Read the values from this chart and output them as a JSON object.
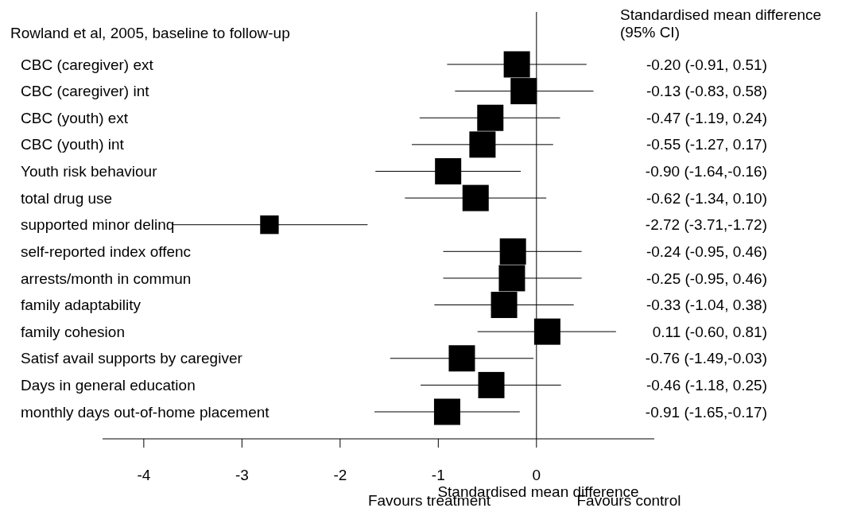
{
  "chart_data": {
    "type": "scatter",
    "orientation": "horizontal",
    "title": "Rowland et al, 2005, baseline to follow-up",
    "xlabel": "Standardised mean difference",
    "categories": [
      "CBC (caregiver) ext",
      "CBC (caregiver) int",
      "CBC (youth) ext",
      "CBC (youth) int",
      "Youth risk behaviour",
      "total drug use",
      "supported minor delinq",
      "self-reported index offenc",
      "arrests/month in commun",
      "family adaptability",
      "family cohesion",
      "Satisf avail supports by caregiver",
      "Days in general education",
      "monthly days out-of-home placement"
    ],
    "series": [
      {
        "color": "#000000",
        "values": [
          -0.2,
          -0.13,
          -0.47,
          -0.55,
          -0.9,
          -0.62,
          -2.72,
          -0.24,
          -0.25,
          -0.33,
          0.11,
          -0.76,
          -0.46,
          -0.91
        ],
        "sizes": [
          1,
          1,
          1,
          1,
          1,
          1,
          0.5,
          1,
          1,
          1,
          1,
          1,
          1,
          1
        ],
        "errors": [
          [
            -0.91,
            0.51
          ],
          [
            -0.83,
            0.58
          ],
          [
            -1.19,
            0.24
          ],
          [
            -1.27,
            0.17
          ],
          [
            -1.64,
            -0.16
          ],
          [
            -1.34,
            0.1
          ],
          [
            -3.71,
            -1.72
          ],
          [
            -0.95,
            0.46
          ],
          [
            -0.95,
            0.46
          ],
          [
            -1.04,
            0.38
          ],
          [
            -0.6,
            0.81
          ],
          [
            -1.49,
            -0.03
          ],
          [
            -1.18,
            0.25
          ],
          [
            -1.65,
            -0.17
          ]
        ],
        "value_labels": [
          "-0.20 (-0.91, 0.51)",
          "-0.13 (-0.83, 0.58)",
          "-0.47 (-1.19, 0.24)",
          "-0.55 (-1.27, 0.17)",
          "-0.90 (-1.64,-0.16)",
          "-0.62 (-1.34, 0.10)",
          "-2.72 (-3.71,-1.72)",
          "-0.24 (-0.95, 0.46)",
          "-0.25 (-0.95, 0.46)",
          "-0.33 (-1.04, 0.38)",
          "0.11 (-0.60, 0.81)",
          "-0.76 (-1.49,-0.03)",
          "-0.46 (-1.18, 0.25)",
          "-0.91 (-1.65,-0.17)"
        ]
      }
    ],
    "xlim": [
      -4.42,
      1.2
    ],
    "xticks": [
      -4,
      -3,
      -2,
      -1,
      0
    ],
    "marker": "square",
    "grid": false,
    "ref_lines": [
      {
        "axis": "x",
        "value": 0,
        "color": "#000000"
      }
    ],
    "annotations": [
      "Standardised mean difference\n(95% CI)",
      "Favours treatment",
      "Favours control"
    ]
  }
}
